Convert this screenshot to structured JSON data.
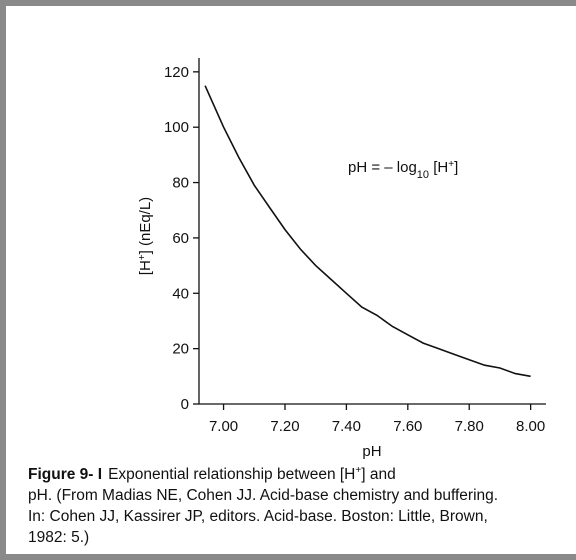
{
  "chart_data": {
    "type": "line",
    "title": "",
    "xlabel": "pH",
    "ylabel": "[H+] (nEq/L)",
    "xlim": [
      6.92,
      8.05
    ],
    "ylim": [
      0,
      125
    ],
    "x_ticks": [
      7.0,
      7.2,
      7.4,
      7.6,
      7.8,
      8.0
    ],
    "x_tick_labels": [
      "7.00",
      "7.20",
      "7.40",
      "7.60",
      "7.80",
      "8.00"
    ],
    "y_ticks": [
      0,
      20,
      40,
      60,
      80,
      100,
      120
    ],
    "y_tick_labels": [
      "0",
      "20",
      "40",
      "60",
      "80",
      "100",
      "120"
    ],
    "grid": false,
    "annotation": "pH = – log10 [H+]",
    "series": [
      {
        "x": [
          6.94,
          7.0,
          7.05,
          7.1,
          7.15,
          7.2,
          7.25,
          7.3,
          7.35,
          7.4,
          7.45,
          7.5,
          7.55,
          7.6,
          7.65,
          7.7,
          7.75,
          7.8,
          7.85,
          7.9,
          7.95,
          8.0
        ],
        "values": [
          115,
          100,
          89,
          79,
          71,
          63,
          56,
          50,
          45,
          40,
          35,
          32,
          28,
          25,
          22,
          20,
          18,
          16,
          14,
          13,
          11,
          10
        ]
      }
    ]
  },
  "caption": {
    "figure_label": "Figure 9- I",
    "line1": "Exponential relationship between [H+] and",
    "line2": "pH. (From Madias NE, Cohen JJ. Acid-base chemistry and buffering.",
    "line3": "In: Cohen JJ, Kassirer JP, editors. Acid-base. Boston: Little, Brown,",
    "line4": "1982: 5.)"
  }
}
